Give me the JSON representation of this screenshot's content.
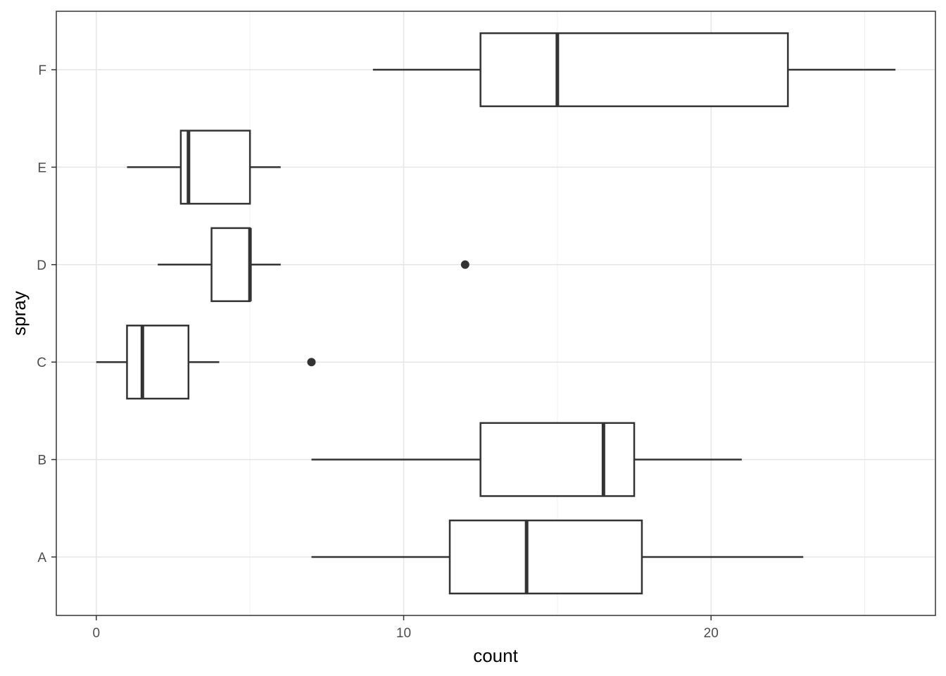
{
  "chart_data": {
    "type": "boxplot",
    "orientation": "horizontal",
    "xlabel": "count",
    "ylabel": "spray",
    "xlim": [
      -1.3,
      27.3
    ],
    "x_ticks": [
      0,
      10,
      20
    ],
    "x_tick_labels": [
      "0",
      "10",
      "20"
    ],
    "minor_x_gridlines": [
      5,
      15,
      25
    ],
    "grid": true,
    "categories": [
      "A",
      "B",
      "C",
      "D",
      "E",
      "F"
    ],
    "boxes": [
      {
        "category": "A",
        "whisker_low": 7,
        "q1": 11.5,
        "median": 14,
        "q3": 17.75,
        "whisker_high": 23,
        "outliers": []
      },
      {
        "category": "B",
        "whisker_low": 7,
        "q1": 12.5,
        "median": 16.5,
        "q3": 17.5,
        "whisker_high": 21,
        "outliers": []
      },
      {
        "category": "C",
        "whisker_low": 0,
        "q1": 1,
        "median": 1.5,
        "q3": 3,
        "whisker_high": 4,
        "outliers": [
          7
        ]
      },
      {
        "category": "D",
        "whisker_low": 2,
        "q1": 3.75,
        "median": 5,
        "q3": 5,
        "whisker_high": 6,
        "outliers": [
          12
        ]
      },
      {
        "category": "E",
        "whisker_low": 1,
        "q1": 2.75,
        "median": 3,
        "q3": 5,
        "whisker_high": 6,
        "outliers": []
      },
      {
        "category": "F",
        "whisker_low": 9,
        "q1": 12.5,
        "median": 15,
        "q3": 22.5,
        "whisker_high": 26,
        "outliers": []
      }
    ]
  },
  "colors": {
    "panel_border": "#333333",
    "grid_major": "#e5e5e5",
    "grid_minor": "#f0f0f0",
    "box_stroke": "#333333",
    "box_fill": "#ffffff",
    "tick_text": "#4d4d4d",
    "axis_title": "#000000"
  }
}
